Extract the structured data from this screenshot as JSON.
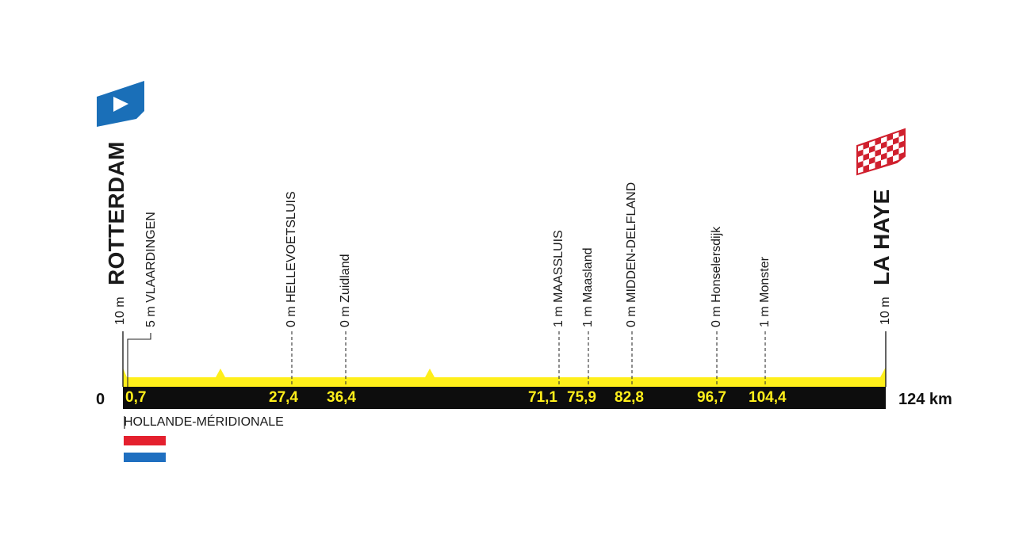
{
  "start": {
    "name": "ROTTERDAM",
    "altitude": "10 m",
    "km": "0"
  },
  "finish": {
    "name": "LA HAYE",
    "altitude": "10 m",
    "km": "124 km"
  },
  "waypoints": [
    {
      "name": "VLAARDINGEN",
      "altitude": "5 m",
      "km": "0,7"
    },
    {
      "name": "HELLEVOETSLUIS",
      "altitude": "0 m",
      "km": "27,4"
    },
    {
      "name": "Zuidland",
      "altitude": "0 m",
      "km": "36,4"
    },
    {
      "name": "MAASSLUIS",
      "altitude": "1 m",
      "km": "71,1"
    },
    {
      "name": "Maasland",
      "altitude": "1 m",
      "km": "75,9"
    },
    {
      "name": "MIDDEN-DELFLAND",
      "altitude": "0 m",
      "km": "82,8"
    },
    {
      "name": "Honselersdijk",
      "altitude": "0 m",
      "km": "96,7"
    },
    {
      "name": "Monster",
      "altitude": "1 m",
      "km": "104,4"
    }
  ],
  "region": "HOLLANDE-MÉRIDIONALE",
  "colors": {
    "profile": "#ffef1a",
    "bar": "#0d0d0d",
    "start_flag": "#1a6fb8",
    "finish_check": "#d0202e",
    "flag_red": "#e4202e",
    "flag_blue": "#1f6fc0"
  },
  "icons": [
    "start-flag-icon",
    "finish-flag-icon",
    "netherlands-flag-icon"
  ]
}
